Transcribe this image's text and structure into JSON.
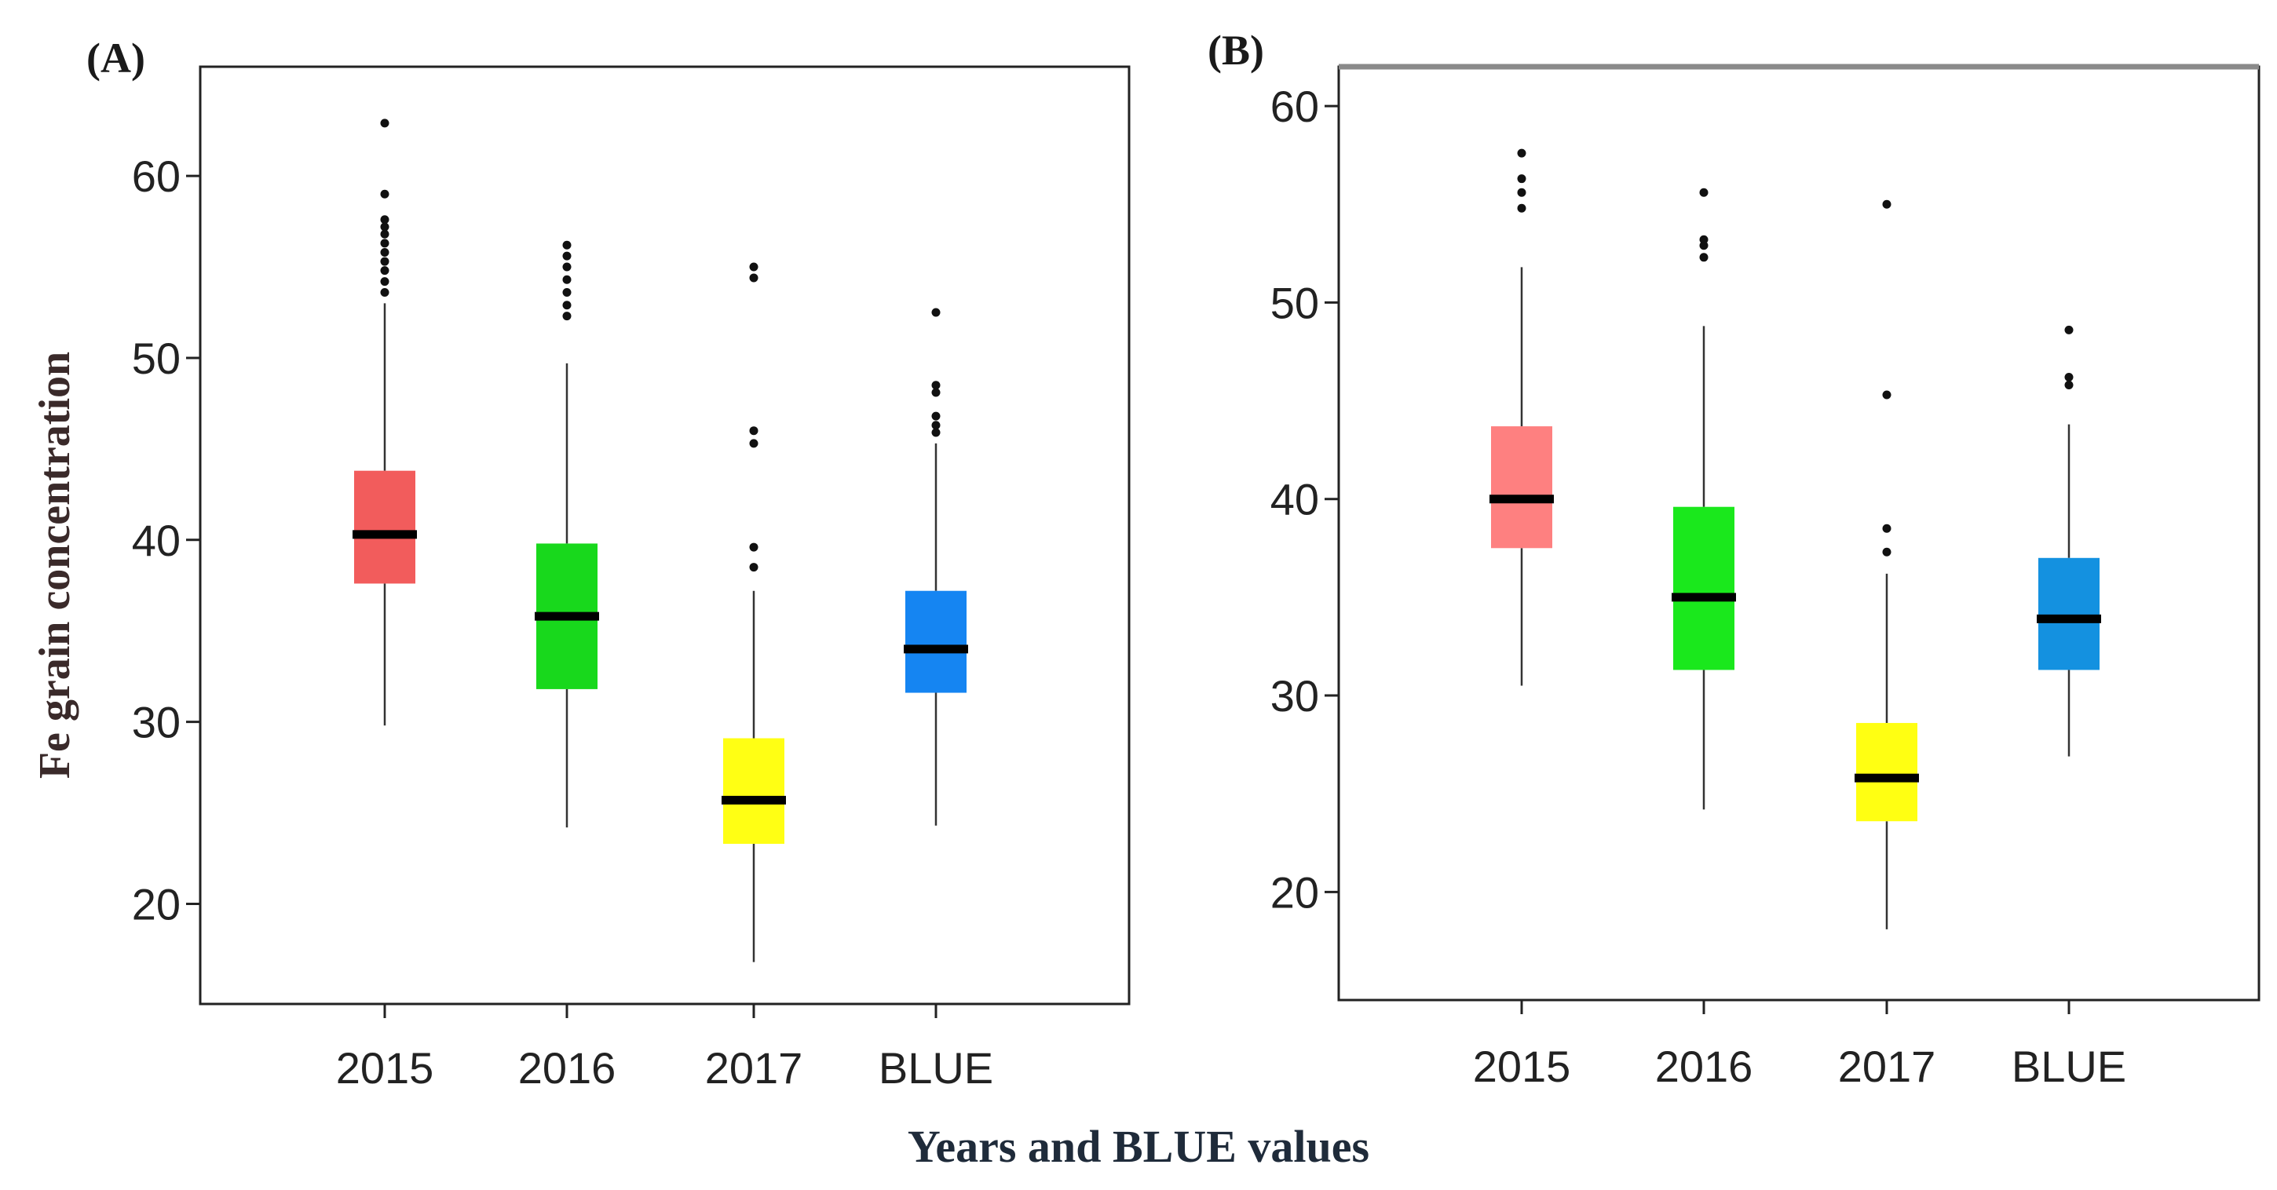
{
  "figure": {
    "ylabel": "Fe grain concentration",
    "xlabel": "Years and BLUE values"
  },
  "chart_data": [
    {
      "type": "box",
      "panel_label": "(A)",
      "categories": [
        "2015",
        "2016",
        "2017",
        "BLUE"
      ],
      "yticks": [
        20,
        30,
        40,
        50,
        60
      ],
      "ylim": [
        14.5,
        66
      ],
      "series": [
        {
          "name": "2015",
          "color": "#f25c5c",
          "q1": 37.6,
          "median": 40.3,
          "q3": 43.8,
          "whisker_low": 29.8,
          "whisker_high": 53.0,
          "outliers": [
            53.6,
            54.2,
            54.8,
            55.3,
            55.8,
            56.3,
            56.8,
            57.2,
            57.6,
            59.0,
            62.9
          ]
        },
        {
          "name": "2016",
          "color": "#18d81c",
          "q1": 31.8,
          "median": 35.8,
          "q3": 39.8,
          "whisker_low": 24.2,
          "whisker_high": 49.7,
          "outliers": [
            52.3,
            52.9,
            53.6,
            54.3,
            55.0,
            55.6,
            56.2
          ]
        },
        {
          "name": "2017",
          "color": "#ffff14",
          "q1": 23.3,
          "median": 25.7,
          "q3": 29.1,
          "whisker_low": 16.8,
          "whisker_high": 37.2,
          "outliers": [
            38.5,
            39.6,
            45.3,
            46.0,
            54.4,
            55.0
          ]
        },
        {
          "name": "BLUE",
          "color": "#1585f2",
          "q1": 31.6,
          "median": 34.0,
          "q3": 37.2,
          "whisker_low": 24.3,
          "whisker_high": 45.3,
          "outliers": [
            45.9,
            46.3,
            46.8,
            48.1,
            48.5,
            52.5
          ]
        }
      ]
    },
    {
      "type": "box",
      "panel_label": "(B)",
      "categories": [
        "2015",
        "2016",
        "2017",
        "BLUE"
      ],
      "yticks": [
        20,
        30,
        40,
        50,
        60
      ],
      "ylim": [
        14.5,
        62
      ],
      "series": [
        {
          "name": "2015",
          "color": "#fe8080",
          "q1": 37.5,
          "median": 40.0,
          "q3": 43.7,
          "whisker_low": 30.5,
          "whisker_high": 51.8,
          "outliers": [
            54.8,
            55.6,
            56.3,
            57.6
          ]
        },
        {
          "name": "2016",
          "color": "#1ae81c",
          "q1": 31.3,
          "median": 35.0,
          "q3": 39.6,
          "whisker_low": 24.2,
          "whisker_high": 48.8,
          "outliers": [
            52.3,
            52.9,
            53.2,
            55.6
          ]
        },
        {
          "name": "2017",
          "color": "#ffff12",
          "q1": 23.6,
          "median": 25.8,
          "q3": 28.6,
          "whisker_low": 18.1,
          "whisker_high": 36.2,
          "outliers": [
            37.3,
            38.5,
            45.3,
            55.0
          ]
        },
        {
          "name": "BLUE",
          "color": "#1491e0",
          "q1": 31.3,
          "median": 33.9,
          "q3": 37.0,
          "whisker_low": 26.9,
          "whisker_high": 43.8,
          "outliers": [
            45.8,
            46.2,
            48.6
          ]
        }
      ]
    }
  ]
}
